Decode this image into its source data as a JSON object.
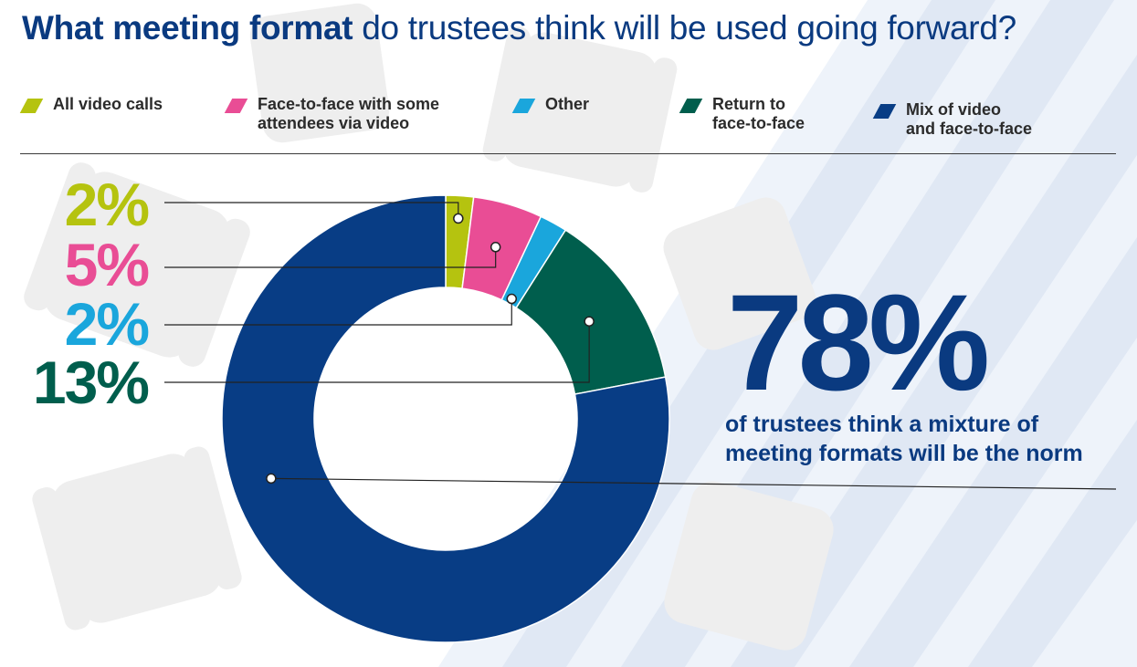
{
  "title": {
    "bold": "What meeting format",
    "rest": " do trustees think will be used going forward?"
  },
  "chart_data": {
    "type": "pie",
    "title": "What meeting format do trustees think will be used going forward?",
    "categories": [
      "All video calls",
      "Face-to-face with some attendees via video",
      "Other",
      "Return to face-to-face",
      "Mix of video and face-to-face"
    ],
    "values": [
      2,
      5,
      2,
      13,
      78
    ],
    "unit": "%",
    "colors": [
      "#b5c30f",
      "#e94d95",
      "#1aa6dc",
      "#005e4d",
      "#083d85"
    ],
    "data_labels": [
      "2%",
      "5%",
      "2%",
      "13%",
      "78%"
    ],
    "legend_position": "top"
  },
  "legend": [
    {
      "line1": "All video calls",
      "line2": ""
    },
    {
      "line1": "Face-to-face with some",
      "line2": "attendees via video"
    },
    {
      "line1": "Other",
      "line2": ""
    },
    {
      "line1": "Return to",
      "line2": "face-to-face"
    },
    {
      "line1": "Mix of video",
      "line2": "and face-to-face"
    }
  ],
  "highlight": {
    "value": "78%",
    "text": "of trustees think a mixture of meeting formats will be the norm"
  }
}
